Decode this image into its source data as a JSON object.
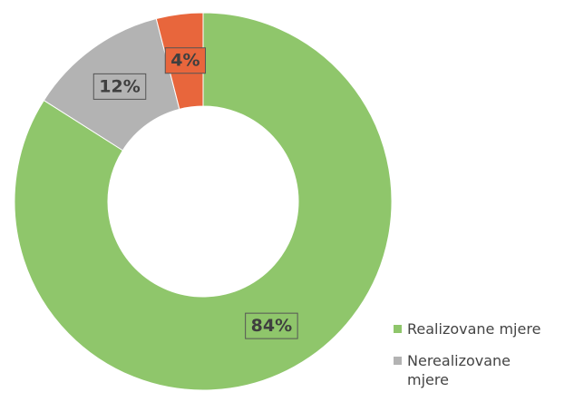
{
  "chart_data": {
    "type": "donut",
    "categories": [
      "Realizovane mjere",
      "Nerealizovane mjere",
      null
    ],
    "values": [
      84,
      12,
      4
    ],
    "value_labels": [
      "84%",
      "12%",
      "4%"
    ],
    "colors": [
      "#8fc66b",
      "#b3b3b3",
      "#e8663c"
    ],
    "legend": "right-bottom"
  }
}
